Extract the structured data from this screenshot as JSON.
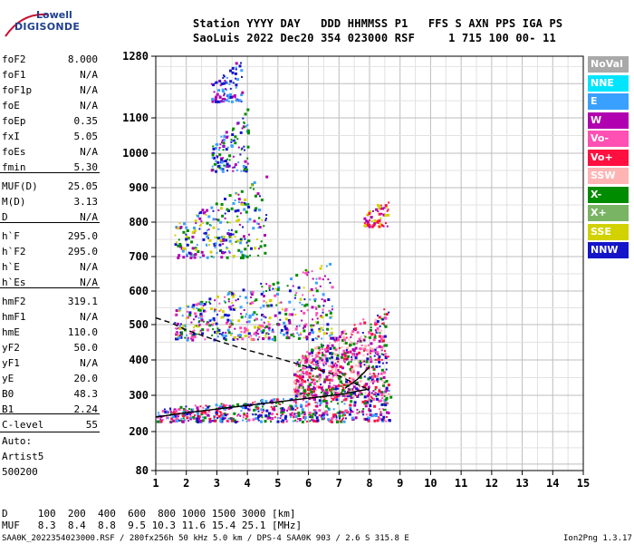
{
  "logo": {
    "line1": "Lowell",
    "line2": "DIGISONDE"
  },
  "header": {
    "row1": "Station YYYY DAY   DDD HHMMSS P1   FFS S AXN PPS IGA PS",
    "row2": "SaoLuis 2022 Dec20 354 023000 RSF     1 715 100 00- 11"
  },
  "params": [
    {
      "name": "foF2",
      "value": "8.000"
    },
    {
      "name": "foF1",
      "value": "N/A"
    },
    {
      "name": "foF1p",
      "value": "N/A"
    },
    {
      "name": "foE",
      "value": "N/A"
    },
    {
      "name": "foEp",
      "value": "0.35"
    },
    {
      "name": "fxI",
      "value": "5.05"
    },
    {
      "name": "foEs",
      "value": "N/A"
    },
    {
      "name": "fmin",
      "value": "5.30"
    },
    {
      "name": "MUF(D)",
      "value": "25.05"
    },
    {
      "name": "M(D)",
      "value": "3.13"
    },
    {
      "name": "D",
      "value": "N/A"
    },
    {
      "name": "h`F",
      "value": "295.0"
    },
    {
      "name": "h`F2",
      "value": "295.0"
    },
    {
      "name": "h`E",
      "value": "N/A"
    },
    {
      "name": "h`Es",
      "value": "N/A"
    },
    {
      "name": "hmF2",
      "value": "319.1"
    },
    {
      "name": "hmF1",
      "value": "N/A"
    },
    {
      "name": "hmE",
      "value": "110.0"
    },
    {
      "name": "yF2",
      "value": "50.0"
    },
    {
      "name": "yF1",
      "value": "N/A"
    },
    {
      "name": "yE",
      "value": "20.0"
    },
    {
      "name": "B0",
      "value": "48.3"
    },
    {
      "name": "B1",
      "value": "2.24"
    },
    {
      "name": "C-level",
      "value": "55"
    }
  ],
  "autoscaling": {
    "line1": "Auto:",
    "line2": "Artist5",
    "line3": "500200"
  },
  "legend": [
    {
      "label": "NoVal",
      "color": "#a9a9a9"
    },
    {
      "label": "NNE",
      "color": "#00e5ff"
    },
    {
      "label": "E",
      "color": "#3aa0ff"
    },
    {
      "label": "W",
      "color": "#b000b0"
    },
    {
      "label": "Vo-",
      "color": "#ff50b4"
    },
    {
      "label": "Vo+",
      "color": "#ff1040"
    },
    {
      "label": "SSW",
      "color": "#ffb4b4"
    },
    {
      "label": "X-",
      "color": "#008c00"
    },
    {
      "label": "X+",
      "color": "#78b464"
    },
    {
      "label": "SSE",
      "color": "#d2d200"
    },
    {
      "label": "NNW",
      "color": "#1414c8"
    }
  ],
  "footer": {
    "d_row": "D     100  200  400  600  800 1000 1500 3000 [km]",
    "muf_row": "MUF   8.3  8.4  8.8  9.5 10.3 11.6 15.4 25.1 [MHz]",
    "file_info": "SAA0K_2022354023000.RSF / 280fx256h 50 kHz 5.0 km / DPS-4 SAA0K 903 / 2.6 S 315.8 E",
    "version": "Ion2Png 1.3.17"
  },
  "chart_data": {
    "type": "scatter",
    "x_ticks": [
      "1",
      "2",
      "3",
      "4",
      "5",
      "6",
      "7",
      "8",
      "9",
      "10",
      "11",
      "12",
      "13",
      "14",
      "15"
    ],
    "y_ticks": [
      "80",
      "200",
      "300",
      "400",
      "500",
      "600",
      "700",
      "800",
      "900",
      "1000",
      "1100",
      "1280"
    ],
    "xlim": [
      1,
      15
    ],
    "ylim": [
      80,
      1280
    ],
    "grid": true,
    "legend_position": "right",
    "traces": [
      {
        "name": "O-trace h'F",
        "x": [
          1.0,
          2.0,
          3.0,
          4.0,
          5.0,
          6.0,
          7.0,
          7.5,
          8.0
        ],
        "y": [
          240,
          252,
          262,
          272,
          282,
          292,
          302,
          310,
          318
        ]
      },
      {
        "name": "O-trace upper",
        "x": [
          7.2,
          7.6,
          8.0
        ],
        "y": [
          320,
          345,
          380
        ]
      },
      {
        "name": "profile",
        "x": [
          1.0,
          1.5,
          2.0,
          3.0,
          4.0,
          5.0,
          6.0,
          7.0,
          7.5,
          8.0
        ],
        "y": [
          520,
          505,
          485,
          455,
          428,
          405,
          380,
          355,
          335,
          315
        ]
      }
    ],
    "scatter_regions": [
      {
        "x": [
          1.0,
          8.7
        ],
        "y": [
          230,
          320
        ],
        "density": 600,
        "colors": [
          "#1414c8",
          "#b000b0",
          "#ff50b4",
          "#ff1040",
          "#008c00",
          "#3aa0ff"
        ]
      },
      {
        "x": [
          5.5,
          8.6
        ],
        "y": [
          300,
          560
        ],
        "density": 700,
        "colors": [
          "#ff50b4",
          "#ff1040",
          "#b000b0",
          "#008c00",
          "#1414c8",
          "#ffb4b4"
        ]
      },
      {
        "x": [
          1.6,
          6.8
        ],
        "y": [
          460,
          690
        ],
        "density": 500,
        "colors": [
          "#1414c8",
          "#b000b0",
          "#ff50b4",
          "#d2d200",
          "#008c00",
          "#3aa0ff"
        ]
      },
      {
        "x": [
          1.6,
          4.6
        ],
        "y": [
          700,
          940
        ],
        "density": 250,
        "colors": [
          "#1414c8",
          "#008c00",
          "#d2d200",
          "#3aa0ff",
          "#b000b0"
        ]
      },
      {
        "x": [
          2.8,
          4.0
        ],
        "y": [
          950,
          1130
        ],
        "density": 120,
        "colors": [
          "#1414c8",
          "#008c00",
          "#b000b0",
          "#3aa0ff"
        ]
      },
      {
        "x": [
          2.8,
          3.8
        ],
        "y": [
          1150,
          1280
        ],
        "density": 80,
        "colors": [
          "#1414c8",
          "#b000b0",
          "#3aa0ff"
        ]
      },
      {
        "x": [
          7.8,
          8.6
        ],
        "y": [
          790,
          880
        ],
        "density": 60,
        "colors": [
          "#d2d200",
          "#ff1040",
          "#b000b0"
        ]
      }
    ]
  }
}
